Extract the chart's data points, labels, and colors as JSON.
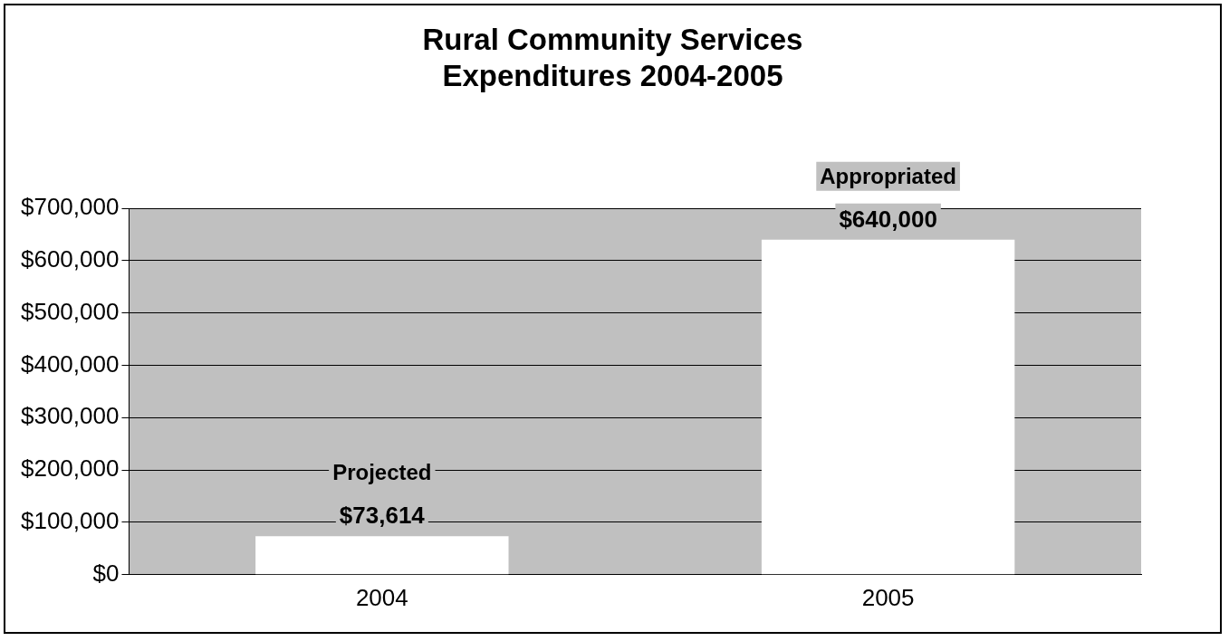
{
  "chart_data": {
    "type": "bar",
    "title": "Rural Community Services Expenditures 2004-2005",
    "categories": [
      "2004",
      "2005"
    ],
    "values": [
      73614,
      640000
    ],
    "value_labels": [
      "$73,614",
      "$640,000"
    ],
    "color": "#ffffff",
    "ylim": [
      0,
      700000
    ],
    "yticks": [
      {
        "value": 0,
        "label": "$0"
      },
      {
        "value": 100000,
        "label": "$100,000"
      },
      {
        "value": 200000,
        "label": "$200,000"
      },
      {
        "value": 300000,
        "label": "$300,000"
      },
      {
        "value": 400000,
        "label": "$400,000"
      },
      {
        "value": 500000,
        "label": "$500,000"
      },
      {
        "value": 600000,
        "label": "$600,000"
      },
      {
        "value": 700000,
        "label": "$700,000"
      }
    ],
    "annotations": [
      "Projected",
      "Appropriated"
    ],
    "grid": "y",
    "legend": false
  }
}
